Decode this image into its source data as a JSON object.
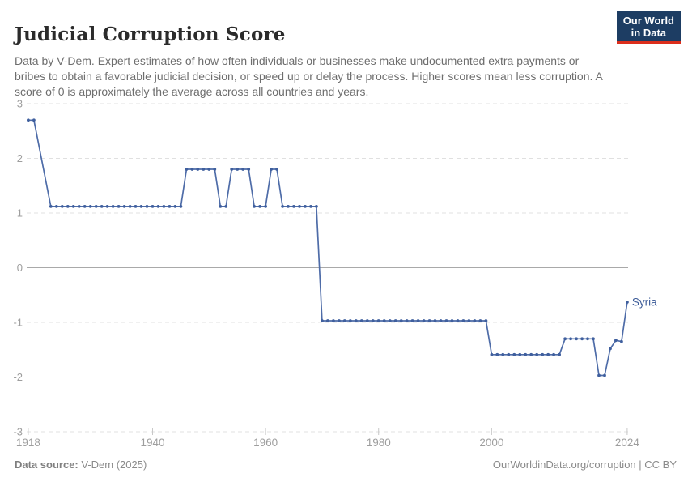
{
  "header": {
    "title": "Judicial Corruption Score",
    "subtitle": "Data by V-Dem. Expert estimates of how often individuals or businesses make undocumented extra payments or bribes to obtain a favorable judicial decision, or speed up or delay the process. Higher scores mean less corruption. A score of 0 is approximately the average across all countries and years.",
    "logo": {
      "line1": "Our World",
      "line2": "in Data"
    }
  },
  "colors": {
    "line": "#4e6ca8",
    "marker": "#3f5f9e",
    "end_label": "#3d5c99",
    "grid": "#e0e0e0",
    "zero_line": "#a9a9a9",
    "axis_text": "#9e9e9e",
    "logo_bg": "#1d3d63",
    "logo_accent": "#dc2e1c"
  },
  "chart_data": {
    "type": "line",
    "title": "Judicial Corruption Score",
    "xlabel": "",
    "ylabel": "",
    "xlim": [
      1918,
      2024
    ],
    "ylim": [
      -3,
      3
    ],
    "x_ticks": [
      1918,
      1940,
      1960,
      1980,
      2000,
      2024
    ],
    "y_ticks": [
      3,
      2,
      1,
      0,
      -1,
      -2,
      -3
    ],
    "grid": "horizontal-dashed",
    "zero_line": true,
    "legend_position": "end-of-line",
    "end_label": "Syria",
    "series": [
      {
        "name": "Syria",
        "points": [
          [
            1918,
            2.7
          ],
          [
            1919,
            2.7
          ],
          [
            1922,
            1.12
          ],
          [
            1923,
            1.12
          ],
          [
            1924,
            1.12
          ],
          [
            1925,
            1.12
          ],
          [
            1926,
            1.12
          ],
          [
            1927,
            1.12
          ],
          [
            1928,
            1.12
          ],
          [
            1929,
            1.12
          ],
          [
            1930,
            1.12
          ],
          [
            1931,
            1.12
          ],
          [
            1932,
            1.12
          ],
          [
            1933,
            1.12
          ],
          [
            1934,
            1.12
          ],
          [
            1935,
            1.12
          ],
          [
            1936,
            1.12
          ],
          [
            1937,
            1.12
          ],
          [
            1938,
            1.12
          ],
          [
            1939,
            1.12
          ],
          [
            1940,
            1.12
          ],
          [
            1941,
            1.12
          ],
          [
            1942,
            1.12
          ],
          [
            1943,
            1.12
          ],
          [
            1944,
            1.12
          ],
          [
            1945,
            1.12
          ],
          [
            1946,
            1.8
          ],
          [
            1947,
            1.8
          ],
          [
            1948,
            1.8
          ],
          [
            1949,
            1.8
          ],
          [
            1950,
            1.8
          ],
          [
            1951,
            1.8
          ],
          [
            1952,
            1.12
          ],
          [
            1953,
            1.12
          ],
          [
            1954,
            1.8
          ],
          [
            1955,
            1.8
          ],
          [
            1956,
            1.8
          ],
          [
            1957,
            1.8
          ],
          [
            1958,
            1.12
          ],
          [
            1959,
            1.12
          ],
          [
            1960,
            1.12
          ],
          [
            1961,
            1.8
          ],
          [
            1962,
            1.8
          ],
          [
            1963,
            1.12
          ],
          [
            1964,
            1.12
          ],
          [
            1965,
            1.12
          ],
          [
            1966,
            1.12
          ],
          [
            1967,
            1.12
          ],
          [
            1968,
            1.12
          ],
          [
            1969,
            1.12
          ],
          [
            1970,
            -0.97
          ],
          [
            1971,
            -0.97
          ],
          [
            1972,
            -0.97
          ],
          [
            1973,
            -0.97
          ],
          [
            1974,
            -0.97
          ],
          [
            1975,
            -0.97
          ],
          [
            1976,
            -0.97
          ],
          [
            1977,
            -0.97
          ],
          [
            1978,
            -0.97
          ],
          [
            1979,
            -0.97
          ],
          [
            1980,
            -0.97
          ],
          [
            1981,
            -0.97
          ],
          [
            1982,
            -0.97
          ],
          [
            1983,
            -0.97
          ],
          [
            1984,
            -0.97
          ],
          [
            1985,
            -0.97
          ],
          [
            1986,
            -0.97
          ],
          [
            1987,
            -0.97
          ],
          [
            1988,
            -0.97
          ],
          [
            1989,
            -0.97
          ],
          [
            1990,
            -0.97
          ],
          [
            1991,
            -0.97
          ],
          [
            1992,
            -0.97
          ],
          [
            1993,
            -0.97
          ],
          [
            1994,
            -0.97
          ],
          [
            1995,
            -0.97
          ],
          [
            1996,
            -0.97
          ],
          [
            1997,
            -0.97
          ],
          [
            1998,
            -0.97
          ],
          [
            1999,
            -0.97
          ],
          [
            2000,
            -1.59
          ],
          [
            2001,
            -1.59
          ],
          [
            2002,
            -1.59
          ],
          [
            2003,
            -1.59
          ],
          [
            2004,
            -1.59
          ],
          [
            2005,
            -1.59
          ],
          [
            2006,
            -1.59
          ],
          [
            2007,
            -1.59
          ],
          [
            2008,
            -1.59
          ],
          [
            2009,
            -1.59
          ],
          [
            2010,
            -1.59
          ],
          [
            2011,
            -1.59
          ],
          [
            2012,
            -1.59
          ],
          [
            2013,
            -1.3
          ],
          [
            2014,
            -1.3
          ],
          [
            2015,
            -1.3
          ],
          [
            2016,
            -1.3
          ],
          [
            2017,
            -1.3
          ],
          [
            2018,
            -1.3
          ],
          [
            2019,
            -1.97
          ],
          [
            2020,
            -1.97
          ],
          [
            2021,
            -1.48
          ],
          [
            2022,
            -1.33
          ],
          [
            2023,
            -1.35
          ],
          [
            2024,
            -0.63
          ]
        ]
      }
    ]
  },
  "footer": {
    "source_label": "Data source:",
    "source_value": " V-Dem (2025)",
    "credit": "OurWorldinData.org/corruption | CC BY"
  }
}
